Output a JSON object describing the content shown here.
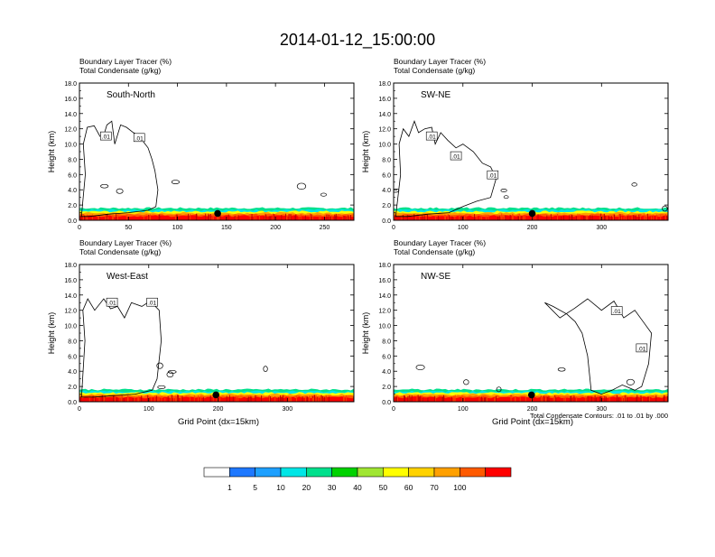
{
  "title": "2014-01-12_15:00:00",
  "footnote": "Total Condensate Contours: .01 to .01 by .000",
  "colorbar": {
    "colors": [
      "#ffffff",
      "#1e78ff",
      "#1ea0ff",
      "#00e6e6",
      "#00e08c",
      "#00d200",
      "#a0e632",
      "#ffff00",
      "#ffd200",
      "#ffa000",
      "#ff5a00",
      "#ff0000"
    ],
    "labels": [
      "1",
      "5",
      "10",
      "20",
      "30",
      "40",
      "50",
      "60",
      "70",
      "100"
    ]
  },
  "chart_data": [
    {
      "type": "contour",
      "header_line1": "Boundary Layer Tracer   (%)",
      "header_line2": "Total Condensate   (g/kg)",
      "panel_label": "South-North",
      "ylabel": "Height (km)",
      "xlabel": "",
      "xlim": [
        0,
        280
      ],
      "ylim": [
        0,
        18
      ],
      "xticks": [
        "0",
        "50",
        "100",
        "150",
        "200",
        "250"
      ],
      "xtick_values": [
        0,
        50,
        100,
        150,
        200,
        250
      ],
      "yticks": [
        "0.0",
        "2.0",
        "4.0",
        "6.0",
        "8.0",
        "10.0",
        "12.0",
        "14.0",
        "16.0",
        "18.0"
      ],
      "contour_labels": [
        ".01",
        ".01"
      ],
      "contour_label_pos": [
        [
          27,
          11
        ],
        [
          61,
          10.8
        ]
      ],
      "marker": [
        141,
        0.9
      ],
      "cloud": [
        [
          2,
          0.5
        ],
        [
          6,
          6
        ],
        [
          4,
          10
        ],
        [
          8,
          12.2
        ],
        [
          15,
          12.4
        ],
        [
          21,
          11
        ],
        [
          25,
          11.2
        ],
        [
          28,
          12.5
        ],
        [
          33,
          13
        ],
        [
          36,
          10
        ],
        [
          42,
          12.5
        ],
        [
          48,
          12.2
        ],
        [
          55,
          11.5
        ],
        [
          60,
          11.2
        ],
        [
          64,
          10.5
        ],
        [
          70,
          9.5
        ],
        [
          74,
          8
        ],
        [
          77,
          6.5
        ],
        [
          80,
          4
        ],
        [
          78,
          1.8
        ],
        [
          70,
          1.3
        ],
        [
          50,
          1
        ],
        [
          30,
          0.8
        ],
        [
          10,
          0.5
        ]
      ]
    },
    {
      "type": "contour",
      "header_line1": "Boundary Layer Tracer   (%)",
      "header_line2": "Total Condensate   (g/kg)",
      "panel_label": "SW-NE",
      "ylabel": "Height (km)",
      "xlabel": "",
      "xlim": [
        0,
        396
      ],
      "ylim": [
        0,
        18
      ],
      "xticks": [
        "0",
        "100",
        "200",
        "300"
      ],
      "xtick_values": [
        0,
        100,
        200,
        300
      ],
      "yticks": [
        "0.0",
        "2.0",
        "4.0",
        "6.0",
        "8.0",
        "10.0",
        "12.0",
        "14.0",
        "16.0",
        "18.0"
      ],
      "contour_labels": [
        ".01",
        ".01",
        ".01"
      ],
      "contour_label_pos": [
        [
          55,
          11
        ],
        [
          90,
          8.4
        ],
        [
          143,
          5.9
        ]
      ],
      "marker": [
        200,
        0.9
      ],
      "cloud": [
        [
          3,
          0.5
        ],
        [
          10,
          6
        ],
        [
          8,
          10
        ],
        [
          14,
          12
        ],
        [
          22,
          11
        ],
        [
          30,
          13
        ],
        [
          36,
          11.5
        ],
        [
          45,
          12
        ],
        [
          55,
          12.2
        ],
        [
          60,
          10
        ],
        [
          68,
          11.5
        ],
        [
          78,
          10.5
        ],
        [
          90,
          9.5
        ],
        [
          100,
          10
        ],
        [
          115,
          9
        ],
        [
          128,
          7.5
        ],
        [
          140,
          7
        ],
        [
          148,
          5.5
        ],
        [
          140,
          3
        ],
        [
          120,
          2.5
        ],
        [
          100,
          1.8
        ],
        [
          80,
          1
        ],
        [
          50,
          0.8
        ],
        [
          20,
          0.5
        ]
      ]
    },
    {
      "type": "contour",
      "header_line1": "Boundary Layer Tracer   (%)",
      "header_line2": "Total Condensate   (g/kg)",
      "panel_label": "West-East",
      "ylabel": "Height (km)",
      "xlabel": "Grid Point (dx=15km)",
      "xlim": [
        0,
        396
      ],
      "ylim": [
        0,
        18
      ],
      "xticks": [
        "0",
        "100",
        "200",
        "300"
      ],
      "xtick_values": [
        0,
        100,
        200,
        300
      ],
      "yticks": [
        "0.0",
        "2.0",
        "4.0",
        "6.0",
        "8.0",
        "10.0",
        "12.0",
        "14.0",
        "16.0",
        "18.0"
      ],
      "contour_labels": [
        ".01",
        ".01"
      ],
      "contour_label_pos": [
        [
          47,
          13
        ],
        [
          105,
          13
        ]
      ],
      "marker": [
        197,
        0.9
      ],
      "cloud": [
        [
          3,
          0.6
        ],
        [
          8,
          8
        ],
        [
          5,
          12
        ],
        [
          12,
          13.5
        ],
        [
          22,
          12
        ],
        [
          35,
          13.5
        ],
        [
          45,
          12.2
        ],
        [
          55,
          12.5
        ],
        [
          65,
          11
        ],
        [
          75,
          13
        ],
        [
          90,
          12.5
        ],
        [
          102,
          13.2
        ],
        [
          115,
          12
        ],
        [
          118,
          8
        ],
        [
          112,
          3
        ],
        [
          105,
          1.5
        ],
        [
          80,
          1
        ],
        [
          50,
          0.8
        ],
        [
          20,
          0.6
        ]
      ]
    },
    {
      "type": "contour",
      "header_line1": "Boundary Layer Tracer   (%)",
      "header_line2": "Total Condensate   (g/kg)",
      "panel_label": "NW-SE",
      "ylabel": "Height (km)",
      "xlabel": "Grid Point (dx=15km)",
      "xlim": [
        0,
        396
      ],
      "ylim": [
        0,
        18
      ],
      "xticks": [
        "0",
        "100",
        "200",
        "300"
      ],
      "xtick_values": [
        0,
        100,
        200,
        300
      ],
      "yticks": [
        "0.0",
        "2.0",
        "4.0",
        "6.0",
        "8.0",
        "10.0",
        "12.0",
        "14.0",
        "16.0",
        "18.0"
      ],
      "contour_labels": [
        ".01",
        ".01"
      ],
      "contour_label_pos": [
        [
          322,
          11.9
        ],
        [
          358,
          7
        ]
      ],
      "marker": [
        199,
        0.9
      ],
      "cloud": [
        [
          218,
          13
        ],
        [
          240,
          11
        ],
        [
          262,
          12.3
        ],
        [
          280,
          13.5
        ],
        [
          300,
          12
        ],
        [
          318,
          13.2
        ],
        [
          332,
          11
        ],
        [
          348,
          12
        ],
        [
          360,
          10.5
        ],
        [
          372,
          9
        ],
        [
          368,
          5
        ],
        [
          358,
          2
        ],
        [
          348,
          1.5
        ],
        [
          330,
          2.2
        ],
        [
          315,
          1.5
        ],
        [
          300,
          1
        ],
        [
          285,
          1.5
        ],
        [
          280,
          6
        ],
        [
          272,
          9
        ],
        [
          262,
          10.5
        ],
        [
          250,
          11.5
        ],
        [
          230,
          12.5
        ]
      ]
    }
  ]
}
